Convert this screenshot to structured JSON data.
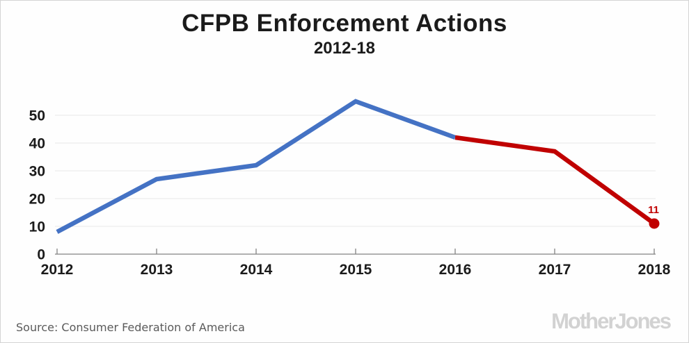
{
  "header": {
    "title": "CFPB Enforcement Actions",
    "subtitle": "2012-18"
  },
  "chart_data": {
    "type": "line",
    "title": "CFPB Enforcement Actions",
    "subtitle": "2012-18",
    "x": [
      2012,
      2013,
      2014,
      2015,
      2016,
      2017,
      2018
    ],
    "x_tick_labels": [
      "2012",
      "2013",
      "2014",
      "2015",
      "2016",
      "2017",
      "2018"
    ],
    "yticks": [
      0,
      10,
      20,
      30,
      40,
      50
    ],
    "ylim": [
      0,
      57
    ],
    "grid": "horizontal-only",
    "legend_position": "none",
    "series": [
      {
        "name": "enforcement-actions-2012-2016",
        "color": "#4472C4",
        "x": [
          2012,
          2013,
          2014,
          2015,
          2016
        ],
        "values": [
          8,
          27,
          32,
          55,
          42
        ],
        "end_marker": false
      },
      {
        "name": "enforcement-actions-2016-2018",
        "color": "#C00000",
        "x": [
          2016,
          2017,
          2018
        ],
        "values": [
          42,
          37,
          11
        ],
        "end_marker": true
      }
    ],
    "end_label": {
      "text": "11",
      "x": 2018,
      "value": 11,
      "color": "#C00000"
    },
    "axis_color": "#828282",
    "gridline_color": "#e8e8e8",
    "tick_label_color": "#1b1b1b"
  },
  "footer": {
    "source": "Source: Consumer Federation of America",
    "logo": "MotherJones"
  }
}
